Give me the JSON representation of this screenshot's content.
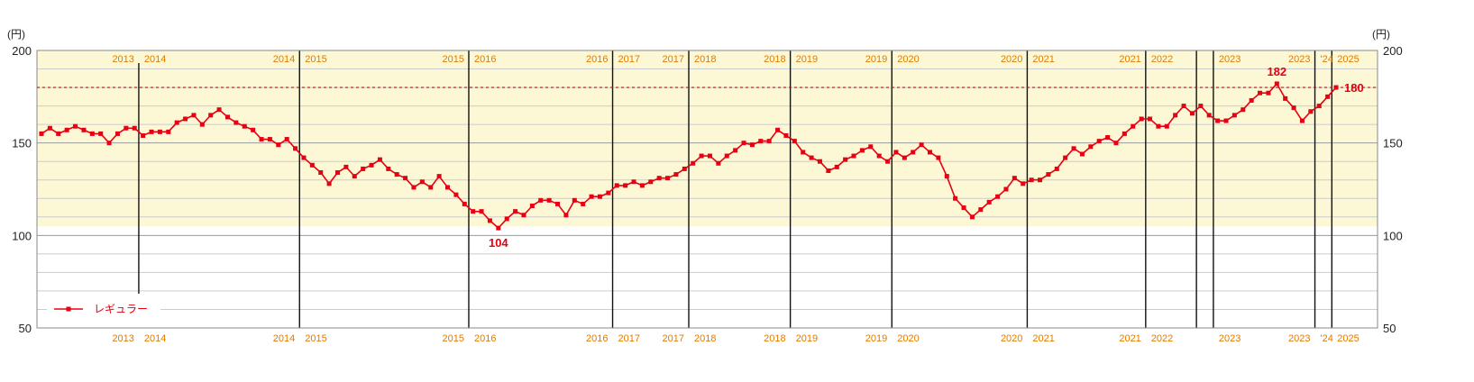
{
  "chart_data": {
    "type": "line",
    "y_unit_label": "(円)",
    "ylim": [
      50,
      200
    ],
    "yticks": [
      "50",
      "100",
      "150",
      "200"
    ],
    "reference_line": 180,
    "shaded_band": [
      105,
      200
    ],
    "grid": true,
    "legend_position": "bottom-left",
    "series": [
      {
        "name": "レギュラー",
        "color": "#e60012",
        "values": [
          155,
          158,
          155,
          157,
          159,
          157,
          155,
          155,
          150,
          155,
          158,
          158,
          154,
          156,
          156,
          156,
          161,
          163,
          165,
          160,
          165,
          168,
          164,
          161,
          159,
          157,
          152,
          152,
          149,
          152,
          147,
          142,
          138,
          134,
          128,
          134,
          137,
          132,
          136,
          138,
          141,
          136,
          133,
          131,
          126,
          129,
          126,
          132,
          126,
          122,
          117,
          113,
          113,
          108,
          104,
          109,
          113,
          111,
          116,
          119,
          119,
          117,
          111,
          119,
          117,
          121,
          121,
          123,
          127,
          127,
          129,
          127,
          129,
          131,
          131,
          133,
          136,
          139,
          143,
          143,
          139,
          143,
          146,
          150,
          149,
          151,
          151,
          157,
          154,
          151,
          145,
          142,
          140,
          135,
          137,
          141,
          143,
          146,
          148,
          143,
          140,
          145,
          142,
          145,
          149,
          145,
          142,
          132,
          120,
          115,
          110,
          114,
          118,
          121,
          125,
          131,
          128,
          130,
          130,
          133,
          136,
          142,
          147,
          144,
          148,
          151,
          153,
          150,
          155,
          159,
          163,
          163,
          159,
          159,
          165,
          170,
          166,
          170,
          165,
          162,
          162,
          165,
          168,
          173,
          177,
          177,
          182,
          174,
          169,
          162,
          167,
          170,
          175,
          180
        ]
      }
    ],
    "annotations": [
      {
        "index": 54,
        "label": "104"
      },
      {
        "index": 146,
        "label": "182"
      },
      {
        "index": 153,
        "label": "180"
      }
    ],
    "year_dividers": [
      {
        "index": 11.5,
        "left": "2013",
        "right": "2014",
        "full": false
      },
      {
        "index": 30.5,
        "left": "2014",
        "right": "2015",
        "full": true
      },
      {
        "index": 50.5,
        "left": "2015",
        "right": "2016",
        "full": true
      },
      {
        "index": 67.5,
        "left": "2016",
        "right": "2017",
        "full": true
      },
      {
        "index": 76.5,
        "left": "2017",
        "right": "2018",
        "full": true
      },
      {
        "index": 88.5,
        "left": "2018",
        "right": "2019",
        "full": true
      },
      {
        "index": 100.5,
        "left": "2019",
        "right": "2020",
        "full": true
      },
      {
        "index": 116.5,
        "left": "2020",
        "right": "2021",
        "full": true
      },
      {
        "index": 130.5,
        "left": "2021",
        "right": "2022",
        "full": true
      },
      {
        "index": 136.5,
        "left": "",
        "right": "",
        "full": true
      },
      {
        "index": 138.5,
        "left": "",
        "right": "2023",
        "full": true
      },
      {
        "index": 150.5,
        "left": "2023",
        "right": "'24",
        "full": true
      },
      {
        "index": 152.5,
        "left": "",
        "right": "2025",
        "full": true
      }
    ]
  }
}
